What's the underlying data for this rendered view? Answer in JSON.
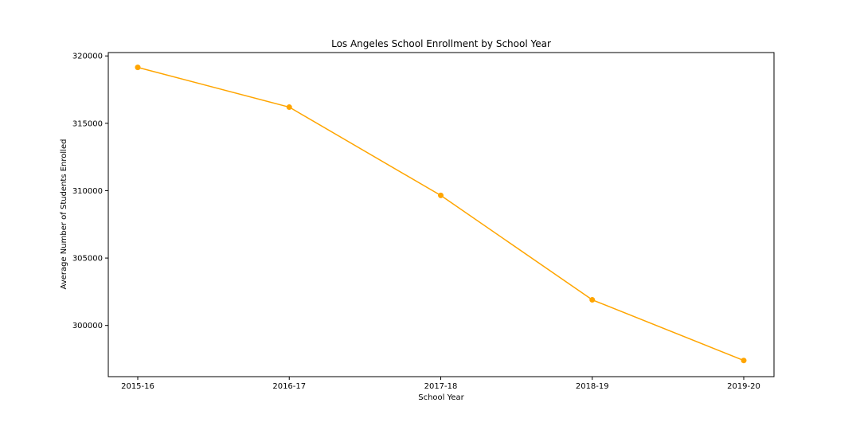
{
  "chart_data": {
    "type": "line",
    "title": "Los Angeles School Enrollment by School Year",
    "xlabel": "School Year",
    "ylabel": "Average Number of Students Enrolled",
    "categories": [
      "2015-16",
      "2016-17",
      "2017-18",
      "2018-19",
      "2019-20"
    ],
    "series": [
      {
        "values": [
          319150,
          316200,
          309650,
          301900,
          297400
        ],
        "color": "#FFA500"
      }
    ],
    "ylim": [
      296200,
      320250
    ],
    "yticks": [
      300000,
      305000,
      310000,
      315000,
      320000
    ],
    "grid": false,
    "legend": "none"
  }
}
